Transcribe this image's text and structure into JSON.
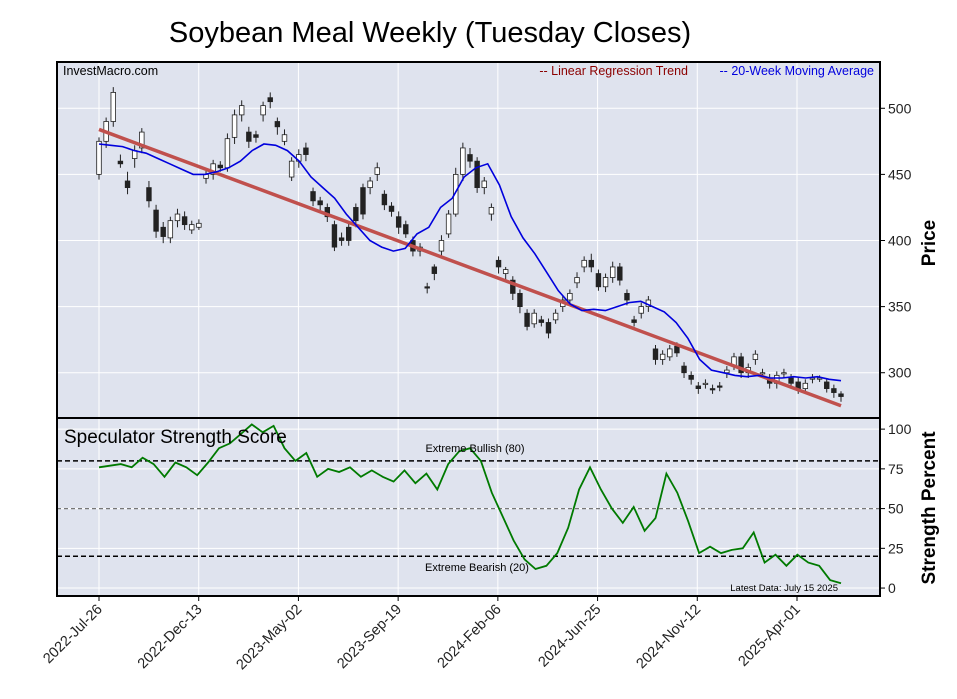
{
  "title": "Soybean Meal Weekly (Tuesday Closes)",
  "watermark": "InvestMacro.com",
  "legend": {
    "regression": "-- Linear Regression Trend",
    "moving_average": "-- 20-Week Moving Average"
  },
  "colors": {
    "panel_bg": "#dfe3ee",
    "regression": "#c0504d",
    "regression_text": "#8b0000",
    "moving_average": "#0000dd",
    "score_line": "#007a00",
    "candle_up": "#ffffff",
    "candle_down": "#222222"
  },
  "chart_data": [
    {
      "type": "candlestick",
      "ylabel": "Price",
      "ylim": [
        265,
        535
      ],
      "y_ticks": [
        300,
        350,
        400,
        450,
        500
      ],
      "grid": true,
      "legend_placement": "top-right",
      "x_tick_labels": [
        "2022-Jul-26",
        "2022-Dec-13",
        "2023-May-02",
        "2023-Sep-19",
        "2024-Feb-06",
        "2024-Jun-25",
        "2024-Nov-12",
        "2025-Apr-01"
      ],
      "candles": [
        [
          0,
          450,
          475,
          446,
          478
        ],
        [
          1,
          475,
          490,
          470,
          493
        ],
        [
          2,
          490,
          512,
          486,
          516
        ],
        [
          3,
          460,
          458,
          455,
          465
        ],
        [
          4,
          445,
          440,
          435,
          452
        ],
        [
          5,
          462,
          468,
          455,
          472
        ],
        [
          6,
          470,
          482,
          466,
          485
        ],
        [
          7,
          440,
          430,
          425,
          445
        ],
        [
          8,
          423,
          407,
          402,
          427
        ],
        [
          9,
          410,
          403,
          398,
          414
        ],
        [
          10,
          402,
          415,
          398,
          418
        ],
        [
          11,
          415,
          420,
          410,
          424
        ],
        [
          12,
          418,
          412,
          408,
          422
        ],
        [
          13,
          408,
          412,
          405,
          415
        ],
        [
          14,
          410,
          413,
          408,
          416
        ],
        [
          15,
          447,
          450,
          443,
          453
        ],
        [
          16,
          450,
          458,
          446,
          461
        ],
        [
          17,
          457,
          455,
          452,
          460
        ],
        [
          18,
          455,
          477,
          452,
          481
        ],
        [
          19,
          478,
          495,
          473,
          499
        ],
        [
          20,
          495,
          502,
          490,
          506
        ],
        [
          21,
          482,
          475,
          470,
          486
        ],
        [
          22,
          480,
          478,
          474,
          483
        ],
        [
          23,
          495,
          502,
          490,
          505
        ],
        [
          24,
          508,
          505,
          500,
          512
        ],
        [
          25,
          490,
          486,
          480,
          493
        ],
        [
          26,
          475,
          480,
          472,
          484
        ],
        [
          27,
          448,
          460,
          445,
          463
        ],
        [
          28,
          460,
          465,
          455,
          469
        ],
        [
          29,
          470,
          465,
          460,
          474
        ],
        [
          30,
          437,
          430,
          426,
          440
        ],
        [
          31,
          430,
          427,
          422,
          433
        ],
        [
          32,
          425,
          418,
          414,
          428
        ],
        [
          33,
          412,
          395,
          392,
          415
        ],
        [
          34,
          402,
          400,
          396,
          406
        ],
        [
          35,
          410,
          400,
          396,
          413
        ],
        [
          36,
          425,
          415,
          410,
          428
        ],
        [
          37,
          440,
          420,
          416,
          443
        ],
        [
          38,
          440,
          445,
          435,
          448
        ],
        [
          39,
          450,
          455,
          445,
          459
        ],
        [
          40,
          435,
          427,
          423,
          438
        ],
        [
          41,
          426,
          422,
          418,
          429
        ],
        [
          42,
          418,
          410,
          405,
          422
        ],
        [
          43,
          412,
          405,
          402,
          415
        ],
        [
          44,
          400,
          392,
          388,
          403
        ],
        [
          45,
          392,
          395,
          388,
          398
        ],
        [
          46,
          365,
          364,
          360,
          368
        ],
        [
          47,
          380,
          375,
          370,
          382
        ],
        [
          48,
          392,
          400,
          388,
          404
        ],
        [
          49,
          405,
          420,
          402,
          423
        ],
        [
          50,
          420,
          450,
          418,
          455
        ],
        [
          51,
          450,
          470,
          445,
          474
        ],
        [
          52,
          465,
          460,
          455,
          470
        ],
        [
          53,
          460,
          440,
          436,
          463
        ],
        [
          54,
          440,
          445,
          435,
          448
        ],
        [
          55,
          420,
          425,
          415,
          428
        ],
        [
          56,
          385,
          380,
          375,
          388
        ],
        [
          57,
          375,
          378,
          370,
          380
        ],
        [
          58,
          370,
          360,
          355,
          373
        ],
        [
          59,
          360,
          350,
          345,
          363
        ],
        [
          60,
          345,
          335,
          332,
          348
        ],
        [
          61,
          337,
          345,
          334,
          348
        ],
        [
          62,
          340,
          338,
          335,
          343
        ],
        [
          63,
          338,
          330,
          326,
          341
        ],
        [
          64,
          340,
          345,
          337,
          348
        ],
        [
          65,
          350,
          355,
          346,
          358
        ],
        [
          66,
          355,
          360,
          351,
          363
        ],
        [
          67,
          368,
          372,
          364,
          376
        ],
        [
          68,
          380,
          385,
          376,
          388
        ],
        [
          69,
          385,
          380,
          376,
          390
        ],
        [
          70,
          375,
          365,
          362,
          378
        ],
        [
          71,
          365,
          372,
          361,
          375
        ],
        [
          72,
          372,
          380,
          368,
          384
        ],
        [
          73,
          380,
          370,
          366,
          383
        ],
        [
          74,
          360,
          355,
          351,
          363
        ],
        [
          75,
          340,
          338,
          335,
          343
        ],
        [
          76,
          345,
          350,
          341,
          353
        ],
        [
          77,
          350,
          355,
          346,
          358
        ],
        [
          78,
          318,
          310,
          306,
          321
        ],
        [
          79,
          310,
          314,
          306,
          317
        ],
        [
          80,
          312,
          318,
          309,
          321
        ],
        [
          81,
          320,
          315,
          312,
          323
        ],
        [
          82,
          305,
          300,
          296,
          308
        ],
        [
          83,
          298,
          295,
          291,
          301
        ],
        [
          84,
          290,
          288,
          284,
          293
        ],
        [
          85,
          292,
          292,
          288,
          295
        ],
        [
          86,
          288,
          287,
          284,
          291
        ],
        [
          87,
          290,
          289,
          286,
          293
        ],
        [
          88,
          300,
          302,
          296,
          305
        ],
        [
          89,
          305,
          312,
          302,
          315
        ],
        [
          90,
          312,
          300,
          296,
          315
        ],
        [
          91,
          300,
          304,
          296,
          307
        ],
        [
          92,
          310,
          314,
          306,
          317
        ],
        [
          93,
          300,
          300,
          296,
          303
        ],
        [
          94,
          296,
          292,
          288,
          299
        ],
        [
          95,
          292,
          298,
          288,
          301
        ],
        [
          96,
          300,
          300,
          296,
          303
        ],
        [
          97,
          296,
          292,
          288,
          299
        ],
        [
          98,
          293,
          288,
          284,
          296
        ],
        [
          99,
          288,
          292,
          284,
          295
        ],
        [
          100,
          296,
          296,
          292,
          299
        ],
        [
          101,
          296,
          296,
          293,
          298
        ],
        [
          102,
          293,
          288,
          285,
          296
        ],
        [
          103,
          288,
          285,
          281,
          291
        ],
        [
          104,
          284,
          282,
          278,
          286
        ]
      ],
      "regression_line": {
        "start": 484,
        "end": 275
      },
      "moving_average": [
        473,
        472,
        471,
        468,
        466,
        462,
        458,
        454,
        450,
        450,
        452,
        455,
        460,
        468,
        473,
        472,
        468,
        460,
        448,
        440,
        432,
        420,
        410,
        400,
        395,
        392,
        394,
        405,
        410,
        425,
        432,
        448,
        455,
        458,
        442,
        418,
        402,
        390,
        376,
        362,
        352,
        347,
        348,
        347,
        350,
        353,
        354,
        350,
        346,
        338,
        326,
        310,
        302,
        300,
        298,
        297,
        298,
        296,
        296,
        297,
        296,
        297,
        295,
        294
      ]
    },
    {
      "type": "line",
      "title": "Speculator Strength Score",
      "ylabel": "Strength Percent",
      "ylim": [
        -5,
        107
      ],
      "y_ticks": [
        0,
        25,
        50,
        75,
        100
      ],
      "reference_lines": [
        {
          "value": 80,
          "label": "Extreme Bullish (80)"
        },
        {
          "value": 50,
          "label": ""
        },
        {
          "value": 20,
          "label": "Extreme Bearish (20)"
        }
      ],
      "annotation": "Latest Data: July 15 2025",
      "values": [
        76,
        77,
        78,
        76,
        82,
        78,
        70,
        79,
        76,
        71,
        79,
        88,
        91,
        97,
        103,
        98,
        102,
        88,
        80,
        85,
        70,
        75,
        73,
        76,
        70,
        74,
        70,
        67,
        74,
        66,
        72,
        62,
        78,
        86,
        88,
        80,
        60,
        45,
        30,
        18,
        12,
        14,
        22,
        38,
        62,
        76,
        62,
        50,
        41,
        51,
        36,
        44,
        72,
        60,
        42,
        22,
        26,
        22,
        24,
        25,
        35,
        16,
        21,
        14,
        21,
        16,
        14,
        5,
        3
      ]
    }
  ]
}
